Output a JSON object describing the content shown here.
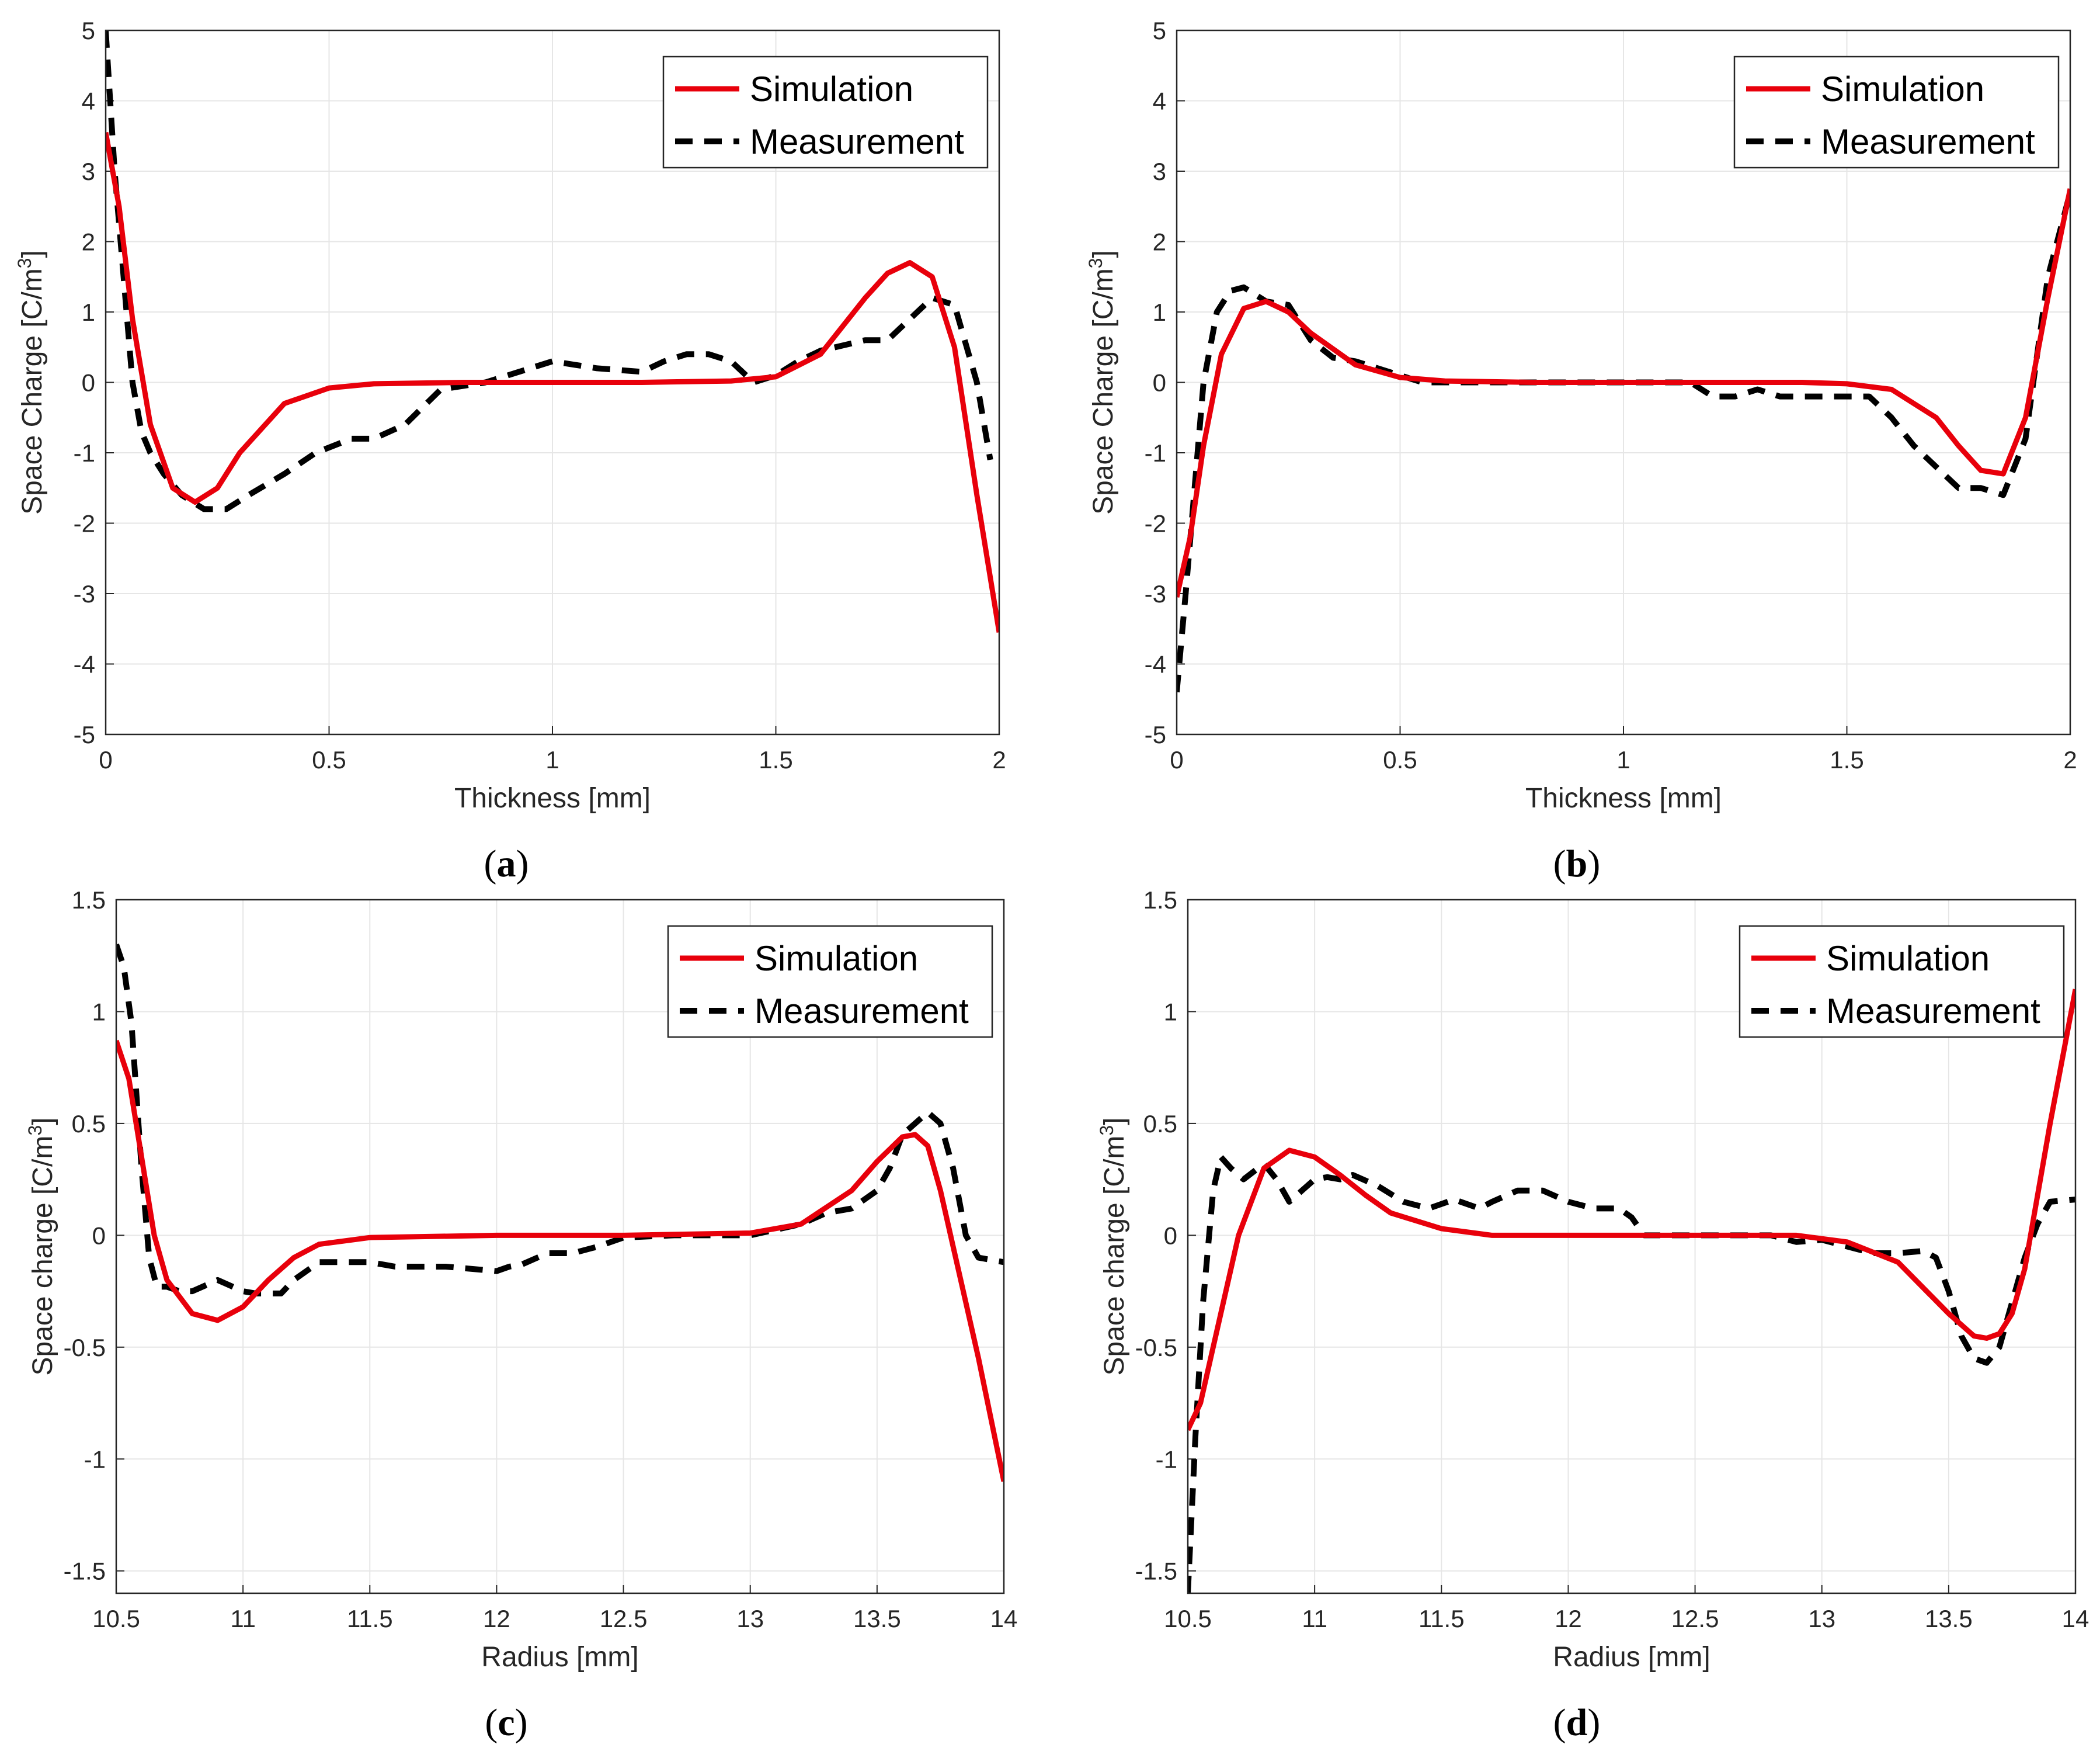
{
  "chart_data": [
    {
      "type": "line",
      "panel_label": "a",
      "xlabel": "Thickness [mm]",
      "ylabel": "Space Charge [C/m",
      "ylabel_superscript": "3",
      "ylabel_suffix": "]",
      "xlim": [
        0,
        2
      ],
      "ylim": [
        -5,
        5
      ],
      "xticks": [
        0,
        0.5,
        1,
        1.5,
        2
      ],
      "xtick_labels": [
        "0",
        "0.5",
        "1",
        "1.5",
        "2"
      ],
      "yticks": [
        -5,
        -4,
        -3,
        -2,
        -1,
        0,
        1,
        2,
        3,
        4,
        5
      ],
      "ytick_labels": [
        "-5",
        "-4",
        "-3",
        "-2",
        "-1",
        "0",
        "1",
        "2",
        "3",
        "4",
        "5"
      ],
      "grid": true,
      "legend_position": "top-right",
      "series": [
        {
          "name": "Simulation",
          "color": "#e8000b",
          "style": "solid",
          "x": [
            0,
            0.03,
            0.06,
            0.1,
            0.15,
            0.2,
            0.25,
            0.3,
            0.4,
            0.5,
            0.6,
            0.8,
            1.0,
            1.2,
            1.4,
            1.5,
            1.6,
            1.7,
            1.75,
            1.8,
            1.85,
            1.9,
            1.95,
            2.0
          ],
          "y": [
            3.55,
            2.5,
            0.9,
            -0.6,
            -1.5,
            -1.7,
            -1.5,
            -1.0,
            -0.3,
            -0.08,
            -0.02,
            0.0,
            0.0,
            0.0,
            0.02,
            0.08,
            0.4,
            1.2,
            1.55,
            1.7,
            1.5,
            0.5,
            -1.6,
            -3.55
          ]
        },
        {
          "name": "Measurement",
          "color": "#000000",
          "style": "dashed",
          "x": [
            0,
            0.02,
            0.04,
            0.06,
            0.08,
            0.1,
            0.13,
            0.17,
            0.22,
            0.27,
            0.32,
            0.4,
            0.47,
            0.55,
            0.6,
            0.67,
            0.75,
            0.85,
            0.9,
            0.95,
            1.0,
            1.05,
            1.1,
            1.2,
            1.25,
            1.3,
            1.35,
            1.4,
            1.45,
            1.5,
            1.55,
            1.6,
            1.7,
            1.75,
            1.8,
            1.85,
            1.9,
            1.95,
            1.98
          ],
          "y": [
            5.0,
            3.0,
            1.5,
            0.0,
            -0.7,
            -1.0,
            -1.3,
            -1.6,
            -1.8,
            -1.8,
            -1.6,
            -1.3,
            -1.0,
            -0.8,
            -0.8,
            -0.6,
            -0.1,
            0.0,
            0.1,
            0.2,
            0.3,
            0.25,
            0.2,
            0.15,
            0.3,
            0.4,
            0.4,
            0.3,
            0.0,
            0.1,
            0.3,
            0.45,
            0.6,
            0.6,
            0.9,
            1.2,
            1.1,
            0.0,
            -1.1
          ]
        }
      ]
    },
    {
      "type": "line",
      "panel_label": "b",
      "xlabel": "Thickness [mm]",
      "ylabel": "Space Charge [C/m",
      "ylabel_superscript": "3",
      "ylabel_suffix": "]",
      "xlim": [
        0,
        2
      ],
      "ylim": [
        -5,
        5
      ],
      "xticks": [
        0,
        0.5,
        1,
        1.5,
        2
      ],
      "xtick_labels": [
        "0",
        "0.5",
        "1",
        "1.5",
        "2"
      ],
      "yticks": [
        -5,
        -4,
        -3,
        -2,
        -1,
        0,
        1,
        2,
        3,
        4,
        5
      ],
      "ytick_labels": [
        "-5",
        "-4",
        "-3",
        "-2",
        "-1",
        "0",
        "1",
        "2",
        "3",
        "4",
        "5"
      ],
      "grid": true,
      "legend_position": "top-right",
      "series": [
        {
          "name": "Simulation",
          "color": "#e8000b",
          "style": "solid",
          "x": [
            0,
            0.03,
            0.06,
            0.1,
            0.15,
            0.2,
            0.25,
            0.3,
            0.4,
            0.5,
            0.6,
            0.8,
            1.0,
            1.2,
            1.4,
            1.5,
            1.6,
            1.7,
            1.75,
            1.8,
            1.85,
            1.9,
            1.95,
            2.0
          ],
          "y": [
            -3.05,
            -2.2,
            -0.9,
            0.4,
            1.05,
            1.15,
            1.0,
            0.7,
            0.25,
            0.07,
            0.02,
            0.0,
            0.0,
            0.0,
            0.0,
            -0.02,
            -0.1,
            -0.5,
            -0.9,
            -1.25,
            -1.3,
            -0.5,
            1.2,
            2.75
          ]
        },
        {
          "name": "Measurement",
          "color": "#000000",
          "style": "dashed",
          "x": [
            0,
            0.02,
            0.04,
            0.06,
            0.09,
            0.12,
            0.15,
            0.2,
            0.25,
            0.3,
            0.35,
            0.4,
            0.5,
            0.55,
            0.6,
            0.7,
            0.8,
            0.9,
            1.0,
            1.1,
            1.15,
            1.2,
            1.25,
            1.3,
            1.35,
            1.4,
            1.5,
            1.55,
            1.6,
            1.65,
            1.7,
            1.75,
            1.8,
            1.85,
            1.9,
            1.95,
            2.0
          ],
          "y": [
            -4.4,
            -3.0,
            -1.5,
            0.0,
            1.0,
            1.3,
            1.35,
            1.15,
            1.1,
            0.6,
            0.35,
            0.3,
            0.1,
            0.0,
            0.0,
            0.0,
            0.0,
            0.0,
            0.0,
            0.0,
            0.0,
            -0.2,
            -0.2,
            -0.1,
            -0.2,
            -0.2,
            -0.2,
            -0.2,
            -0.5,
            -0.9,
            -1.2,
            -1.5,
            -1.5,
            -1.6,
            -0.8,
            1.5,
            2.7
          ]
        }
      ]
    },
    {
      "type": "line",
      "panel_label": "c",
      "xlabel": "Radius [mm]",
      "ylabel": "Space charge [C/m",
      "ylabel_superscript": "3",
      "ylabel_suffix": "]",
      "xlim": [
        10.5,
        14
      ],
      "ylim": [
        -1.6,
        1.5
      ],
      "xticks": [
        10.5,
        11,
        11.5,
        12,
        12.5,
        13,
        13.5,
        14
      ],
      "xtick_labels": [
        "10.5",
        "11",
        "11.5",
        "12",
        "12.5",
        "13",
        "13.5",
        "14"
      ],
      "yticks": [
        -1.5,
        -1,
        -0.5,
        0,
        0.5,
        1,
        1.5
      ],
      "ytick_labels": [
        "-1.5",
        "-1",
        "-0.5",
        "0",
        "0.5",
        "1",
        "1.5"
      ],
      "grid": true,
      "legend_position": "top-right",
      "series": [
        {
          "name": "Simulation",
          "color": "#e8000b",
          "style": "solid",
          "x": [
            10.5,
            10.55,
            10.6,
            10.65,
            10.7,
            10.8,
            10.9,
            11.0,
            11.1,
            11.2,
            11.3,
            11.5,
            12.0,
            12.5,
            13.0,
            13.2,
            13.4,
            13.5,
            13.6,
            13.65,
            13.7,
            13.75,
            13.8,
            13.9,
            14.0
          ],
          "y": [
            0.87,
            0.7,
            0.35,
            0.0,
            -0.2,
            -0.35,
            -0.38,
            -0.32,
            -0.2,
            -0.1,
            -0.04,
            -0.01,
            0.0,
            0.0,
            0.01,
            0.05,
            0.2,
            0.33,
            0.44,
            0.45,
            0.4,
            0.2,
            -0.05,
            -0.55,
            -1.1
          ]
        },
        {
          "name": "Measurement",
          "color": "#000000",
          "style": "dashed",
          "x": [
            10.5,
            10.53,
            10.56,
            10.6,
            10.63,
            10.66,
            10.7,
            10.75,
            10.8,
            10.9,
            11.0,
            11.05,
            11.15,
            11.2,
            11.3,
            11.5,
            11.6,
            11.8,
            12.0,
            12.05,
            12.1,
            12.2,
            12.3,
            12.4,
            12.5,
            12.7,
            12.9,
            13.0,
            13.2,
            13.3,
            13.4,
            13.5,
            13.55,
            13.6,
            13.65,
            13.7,
            13.75,
            13.8,
            13.85,
            13.9,
            14.0
          ],
          "y": [
            1.3,
            1.2,
            0.95,
            0.3,
            -0.1,
            -0.23,
            -0.23,
            -0.25,
            -0.25,
            -0.2,
            -0.25,
            -0.26,
            -0.26,
            -0.2,
            -0.12,
            -0.12,
            -0.14,
            -0.14,
            -0.16,
            -0.14,
            -0.13,
            -0.08,
            -0.08,
            -0.05,
            -0.01,
            0.0,
            0.0,
            0.0,
            0.05,
            0.1,
            0.12,
            0.2,
            0.3,
            0.45,
            0.5,
            0.55,
            0.5,
            0.3,
            0.0,
            -0.1,
            -0.12
          ]
        }
      ]
    },
    {
      "type": "line",
      "panel_label": "d",
      "xlabel": "Radius [mm]",
      "ylabel": "Space charge [C/m",
      "ylabel_superscript": "3",
      "ylabel_suffix": "]",
      "xlim": [
        10.5,
        14
      ],
      "ylim": [
        -1.6,
        1.5
      ],
      "xticks": [
        10.5,
        11,
        11.5,
        12,
        12.5,
        13,
        13.5,
        14
      ],
      "xtick_labels": [
        "10.5",
        "11",
        "11.5",
        "12",
        "12.5",
        "13",
        "13.5",
        "14"
      ],
      "yticks": [
        -1.5,
        -1,
        -0.5,
        0,
        0.5,
        1,
        1.5
      ],
      "ytick_labels": [
        "-1.5",
        "-1",
        "-0.5",
        "0",
        "0.5",
        "1",
        "1.5"
      ],
      "grid": true,
      "legend_position": "top-right",
      "series": [
        {
          "name": "Simulation",
          "color": "#e8000b",
          "style": "solid",
          "x": [
            10.5,
            10.55,
            10.6,
            10.7,
            10.8,
            10.9,
            11.0,
            11.1,
            11.2,
            11.3,
            11.5,
            11.7,
            12.0,
            12.5,
            12.9,
            13.1,
            13.3,
            13.5,
            13.6,
            13.65,
            13.7,
            13.75,
            13.8,
            13.9,
            14.0
          ],
          "y": [
            -0.87,
            -0.75,
            -0.5,
            0.0,
            0.3,
            0.38,
            0.35,
            0.27,
            0.18,
            0.1,
            0.03,
            0.0,
            0.0,
            0.0,
            0.0,
            -0.03,
            -0.12,
            -0.35,
            -0.45,
            -0.46,
            -0.44,
            -0.35,
            -0.15,
            0.5,
            1.1
          ]
        },
        {
          "name": "Measurement",
          "color": "#000000",
          "style": "dashed",
          "x": [
            10.5,
            10.53,
            10.56,
            10.6,
            10.63,
            10.67,
            10.72,
            10.8,
            10.85,
            10.9,
            10.95,
            11.0,
            11.05,
            11.1,
            11.15,
            11.25,
            11.35,
            11.45,
            11.55,
            11.65,
            11.7,
            11.8,
            11.9,
            12.0,
            12.1,
            12.2,
            12.25,
            12.3,
            12.5,
            12.7,
            12.8,
            12.9,
            13.0,
            13.1,
            13.2,
            13.3,
            13.4,
            13.45,
            13.5,
            13.55,
            13.6,
            13.65,
            13.7,
            13.75,
            13.8,
            13.85,
            13.9,
            14.0
          ],
          "y": [
            -1.6,
            -0.9,
            -0.3,
            0.2,
            0.35,
            0.3,
            0.25,
            0.32,
            0.25,
            0.15,
            0.2,
            0.25,
            0.26,
            0.25,
            0.27,
            0.22,
            0.15,
            0.12,
            0.16,
            0.12,
            0.15,
            0.2,
            0.2,
            0.15,
            0.12,
            0.12,
            0.08,
            0.0,
            0.0,
            0.0,
            0.0,
            -0.03,
            -0.02,
            -0.05,
            -0.08,
            -0.08,
            -0.07,
            -0.1,
            -0.25,
            -0.45,
            -0.55,
            -0.57,
            -0.5,
            -0.3,
            -0.1,
            0.05,
            0.15,
            0.16
          ]
        }
      ]
    }
  ],
  "captions": {
    "a": {
      "open": "(",
      "letter": "a",
      "close": ")"
    },
    "b": {
      "open": "(",
      "letter": "b",
      "close": ")"
    },
    "c": {
      "open": "(",
      "letter": "c",
      "close": ")"
    },
    "d": {
      "open": "(",
      "letter": "d",
      "close": ")"
    }
  }
}
